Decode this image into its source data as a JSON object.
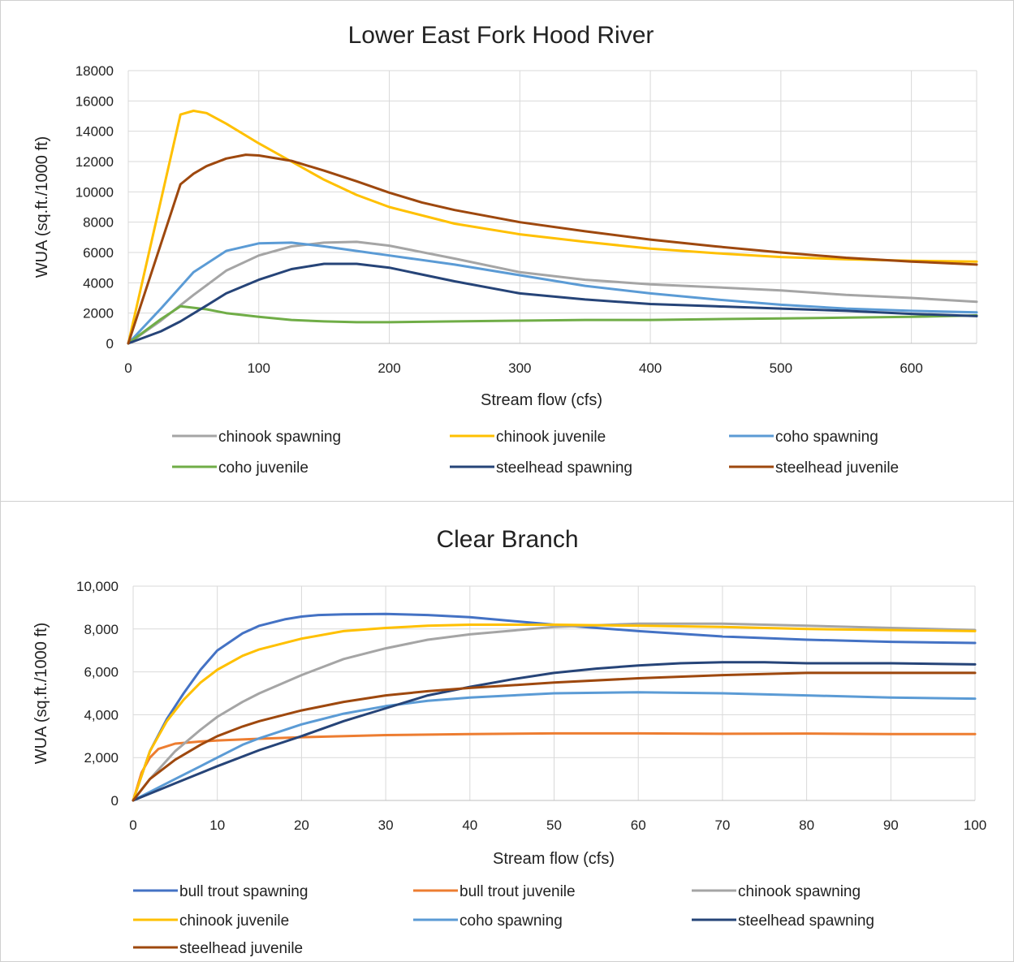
{
  "chart_data": [
    {
      "type": "line",
      "title": "Lower East Fork Hood River",
      "xlabel": "Stream flow (cfs)",
      "ylabel": "WUA (sq.ft./1000 ft)",
      "xlim": [
        0,
        650
      ],
      "ylim": [
        0,
        18000
      ],
      "xticks": [
        "0",
        "100",
        "200",
        "300",
        "400",
        "500",
        "600"
      ],
      "xtick_values": [
        0,
        100,
        200,
        300,
        400,
        500,
        600
      ],
      "yticks": [
        "0",
        "2000",
        "4000",
        "6000",
        "8000",
        "10000",
        "12000",
        "14000",
        "16000",
        "18000"
      ],
      "ytick_values": [
        0,
        2000,
        4000,
        6000,
        8000,
        10000,
        12000,
        14000,
        16000,
        18000
      ],
      "grid": true,
      "legend_position": "bottom",
      "series": [
        {
          "name": "chinook spawning",
          "color": "#a5a5a5",
          "x": [
            0,
            25,
            50,
            75,
            100,
            125,
            150,
            175,
            200,
            250,
            300,
            350,
            400,
            450,
            500,
            550,
            600,
            650
          ],
          "y": [
            0,
            1500,
            3200,
            4800,
            5800,
            6400,
            6650,
            6700,
            6450,
            5600,
            4700,
            4200,
            3900,
            3700,
            3500,
            3200,
            3000,
            2750
          ]
        },
        {
          "name": "chinook juvenile",
          "color": "#ffc000",
          "x": [
            0,
            40,
            50,
            60,
            75,
            100,
            125,
            150,
            175,
            200,
            250,
            300,
            350,
            400,
            450,
            500,
            550,
            600,
            650
          ],
          "y": [
            0,
            15100,
            15350,
            15200,
            14500,
            13200,
            12000,
            10800,
            9800,
            9000,
            7900,
            7200,
            6700,
            6250,
            5950,
            5700,
            5550,
            5450,
            5400
          ]
        },
        {
          "name": "coho spawning",
          "color": "#5b9bd5",
          "x": [
            0,
            25,
            50,
            75,
            100,
            125,
            150,
            175,
            200,
            250,
            300,
            350,
            400,
            450,
            500,
            550,
            600,
            650
          ],
          "y": [
            0,
            2300,
            4700,
            6100,
            6600,
            6650,
            6400,
            6100,
            5800,
            5200,
            4500,
            3800,
            3300,
            2900,
            2550,
            2300,
            2150,
            2050
          ]
        },
        {
          "name": "coho juvenile",
          "color": "#70ad47",
          "x": [
            0,
            25,
            40,
            60,
            75,
            100,
            125,
            150,
            175,
            200,
            250,
            300,
            350,
            400,
            450,
            500,
            550,
            600,
            650
          ],
          "y": [
            0,
            1600,
            2450,
            2250,
            2000,
            1750,
            1550,
            1450,
            1400,
            1400,
            1450,
            1500,
            1550,
            1550,
            1600,
            1650,
            1700,
            1750,
            1850
          ]
        },
        {
          "name": "steelhead spawning",
          "color": "#264478",
          "x": [
            0,
            25,
            40,
            60,
            75,
            100,
            125,
            150,
            175,
            200,
            250,
            300,
            350,
            400,
            450,
            500,
            550,
            600,
            650
          ],
          "y": [
            0,
            800,
            1450,
            2500,
            3300,
            4200,
            4900,
            5250,
            5250,
            5000,
            4100,
            3300,
            2900,
            2600,
            2450,
            2300,
            2150,
            1950,
            1800
          ]
        },
        {
          "name": "steelhead juvenile",
          "color": "#9e480e",
          "x": [
            0,
            40,
            50,
            60,
            75,
            90,
            100,
            125,
            150,
            175,
            200,
            225,
            250,
            300,
            350,
            400,
            450,
            500,
            550,
            600,
            650
          ],
          "y": [
            0,
            10500,
            11200,
            11700,
            12200,
            12450,
            12400,
            12050,
            11400,
            10700,
            9950,
            9300,
            8800,
            8000,
            7400,
            6850,
            6400,
            6000,
            5650,
            5400,
            5200
          ]
        }
      ]
    },
    {
      "type": "line",
      "title": "Clear Branch",
      "xlabel": "Stream flow (cfs)",
      "ylabel": "WUA (sq.ft./1000 ft)",
      "xlim": [
        0,
        100
      ],
      "ylim": [
        0,
        10000
      ],
      "xticks": [
        "0",
        "10",
        "20",
        "30",
        "40",
        "50",
        "60",
        "70",
        "80",
        "90",
        "100"
      ],
      "xtick_values": [
        0,
        10,
        20,
        30,
        40,
        50,
        60,
        70,
        80,
        90,
        100
      ],
      "yticks": [
        "0",
        "2,000",
        "4,000",
        "6,000",
        "8,000",
        "10,000"
      ],
      "ytick_values": [
        0,
        2000,
        4000,
        6000,
        8000,
        10000
      ],
      "grid": true,
      "legend_position": "bottom",
      "series": [
        {
          "name": "bull trout spawning",
          "color": "#4472c4",
          "x": [
            0,
            2,
            4,
            6,
            8,
            10,
            13,
            15,
            18,
            20,
            22,
            25,
            30,
            35,
            40,
            50,
            60,
            70,
            80,
            90,
            100
          ],
          "y": [
            0,
            2300,
            3800,
            5000,
            6100,
            7000,
            7800,
            8150,
            8450,
            8580,
            8650,
            8680,
            8700,
            8650,
            8550,
            8200,
            7900,
            7650,
            7500,
            7400,
            7350
          ]
        },
        {
          "name": "bull trout juvenile",
          "color": "#ed7d31",
          "x": [
            0,
            1,
            2,
            3,
            5,
            8,
            10,
            15,
            20,
            30,
            40,
            50,
            60,
            70,
            80,
            90,
            100
          ],
          "y": [
            0,
            1300,
            2000,
            2400,
            2650,
            2750,
            2800,
            2880,
            2950,
            3050,
            3100,
            3130,
            3130,
            3110,
            3120,
            3100,
            3100
          ]
        },
        {
          "name": "chinook spawning",
          "color": "#a5a5a5",
          "x": [
            0,
            2,
            5,
            8,
            10,
            13,
            15,
            20,
            25,
            30,
            35,
            40,
            50,
            60,
            70,
            80,
            90,
            100
          ],
          "y": [
            0,
            1000,
            2300,
            3300,
            3900,
            4600,
            5000,
            5850,
            6600,
            7100,
            7500,
            7750,
            8100,
            8250,
            8250,
            8150,
            8050,
            7950
          ]
        },
        {
          "name": "chinook juvenile",
          "color": "#ffc000",
          "x": [
            0,
            2,
            4,
            6,
            8,
            10,
            13,
            15,
            20,
            25,
            30,
            35,
            40,
            50,
            60,
            70,
            80,
            90,
            100
          ],
          "y": [
            0,
            2300,
            3700,
            4700,
            5500,
            6100,
            6750,
            7050,
            7550,
            7900,
            8050,
            8150,
            8200,
            8200,
            8150,
            8100,
            8000,
            7950,
            7900
          ]
        },
        {
          "name": "coho spawning",
          "color": "#5b9bd5",
          "x": [
            0,
            2,
            5,
            8,
            10,
            13,
            15,
            20,
            25,
            30,
            35,
            40,
            50,
            60,
            70,
            80,
            90,
            100
          ],
          "y": [
            0,
            400,
            1000,
            1600,
            2000,
            2600,
            2900,
            3550,
            4050,
            4400,
            4650,
            4800,
            5000,
            5050,
            5000,
            4900,
            4800,
            4750
          ]
        },
        {
          "name": "steelhead spawning",
          "color": "#264478",
          "x": [
            0,
            5,
            10,
            15,
            20,
            25,
            30,
            35,
            40,
            45,
            50,
            55,
            60,
            65,
            70,
            75,
            80,
            90,
            100
          ],
          "y": [
            0,
            800,
            1600,
            2350,
            3000,
            3700,
            4300,
            4900,
            5300,
            5650,
            5950,
            6150,
            6300,
            6400,
            6450,
            6450,
            6400,
            6400,
            6350
          ]
        },
        {
          "name": "steelhead juvenile",
          "color": "#9e480e",
          "x": [
            0,
            2,
            5,
            8,
            10,
            13,
            15,
            20,
            25,
            30,
            35,
            40,
            50,
            60,
            70,
            80,
            90,
            100
          ],
          "y": [
            0,
            1000,
            1900,
            2600,
            3000,
            3450,
            3700,
            4200,
            4600,
            4900,
            5100,
            5250,
            5500,
            5700,
            5850,
            5950,
            5950,
            5950
          ]
        }
      ]
    }
  ]
}
